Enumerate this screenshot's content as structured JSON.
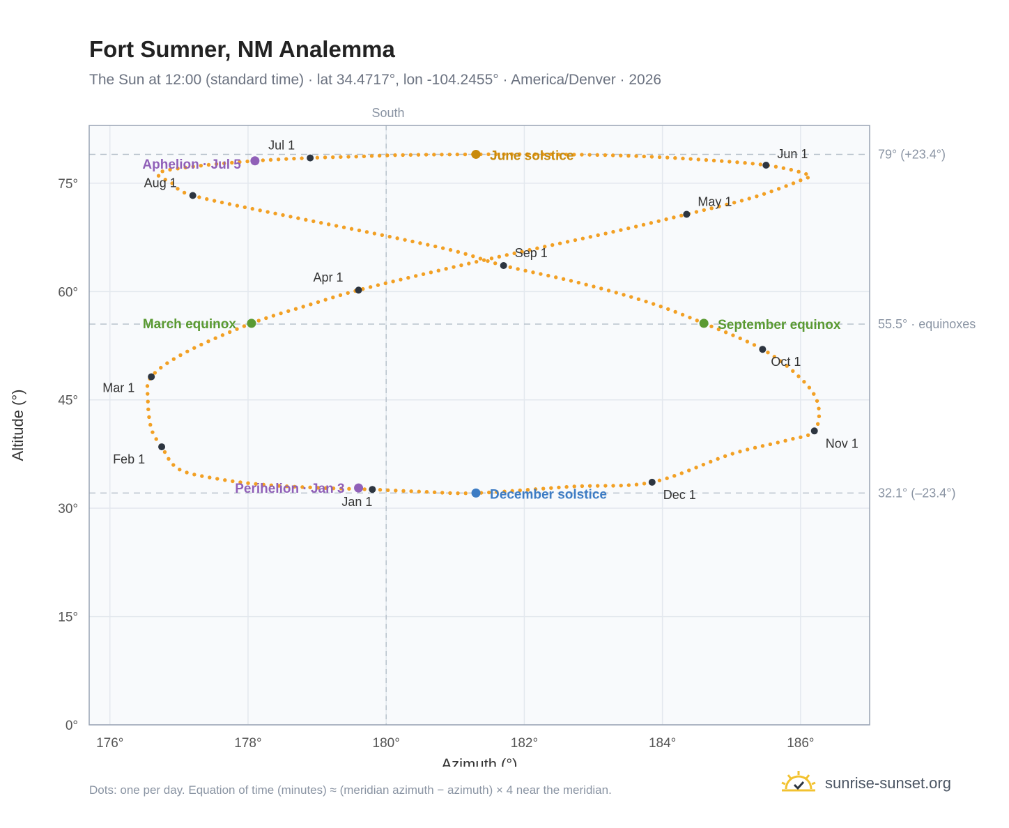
{
  "title": "Fort Sumner, NM Analemma",
  "subtitle": "The Sun at 12:00 (standard time) · lat 34.4717°, lon -104.2455° · America/Denver · 2026",
  "footnote": "Dots: one per day. Equation of time (minutes) ≈ (meridian azimuth − azimuth) × 4 near the meridian.",
  "brand": {
    "name": "sunrise-sunset.org",
    "icon": "sun-horizon-icon"
  },
  "colors": {
    "path": "#f2a024",
    "month_marker": "#2d3540",
    "equinox": "#5a9a32",
    "june_solstice": "#c88a0c",
    "december_solstice": "#3d7cc4",
    "apsis": "#9060b8",
    "plot_bg": "#f8fafc",
    "reference_line": "#b8c2cc"
  },
  "chart_data": {
    "type": "scatter",
    "xlabel": "Azimuth (°)",
    "ylabel": "Altitude (°)",
    "xlim": [
      175.7,
      187
    ],
    "ylim": [
      0,
      83
    ],
    "x_ticks": [
      {
        "value": 176,
        "label": "176°"
      },
      {
        "value": 178,
        "label": "178°"
      },
      {
        "value": 180,
        "label": "180°"
      },
      {
        "value": 182,
        "label": "182°"
      },
      {
        "value": 184,
        "label": "184°"
      },
      {
        "value": 186,
        "label": "186°"
      }
    ],
    "y_ticks": [
      {
        "value": 0,
        "label": "0°"
      },
      {
        "value": 15,
        "label": "15°"
      },
      {
        "value": 30,
        "label": "30°"
      },
      {
        "value": 45,
        "label": "45°"
      },
      {
        "value": 60,
        "label": "60°"
      },
      {
        "value": 75,
        "label": "75°"
      }
    ],
    "grid": true,
    "meridian": {
      "azimuth": 180,
      "label": "South"
    },
    "reference_lines": [
      {
        "altitude": 79,
        "label": "79° (+23.4°)"
      },
      {
        "altitude": 55.5,
        "label": "55.5° · equinoxes"
      },
      {
        "altitude": 32.1,
        "label": "32.1° (–23.4°)"
      }
    ],
    "path_points": [
      [
        179.8,
        32.6
      ],
      [
        179.1,
        32.8
      ],
      [
        178.3,
        33.2
      ],
      [
        177.6,
        34.0
      ],
      [
        177.0,
        35.4
      ],
      [
        176.75,
        38.5
      ],
      [
        176.6,
        41.0
      ],
      [
        176.55,
        45.0
      ],
      [
        176.6,
        48.2
      ],
      [
        177.1,
        51.6
      ],
      [
        178.05,
        55.6
      ],
      [
        178.9,
        58.2
      ],
      [
        179.6,
        60.2
      ],
      [
        180.8,
        63.0
      ],
      [
        182.0,
        65.6
      ],
      [
        183.3,
        68.3
      ],
      [
        184.35,
        70.7
      ],
      [
        185.3,
        73.0
      ],
      [
        186.0,
        75.4
      ],
      [
        186.1,
        76.2
      ],
      [
        185.5,
        77.5
      ],
      [
        184.5,
        78.3
      ],
      [
        183.5,
        78.8
      ],
      [
        182.4,
        79.0
      ],
      [
        181.3,
        79.0
      ],
      [
        180.2,
        78.9
      ],
      [
        179.6,
        78.7
      ],
      [
        178.9,
        78.5
      ],
      [
        178.1,
        78.1
      ],
      [
        177.2,
        77.3
      ],
      [
        176.7,
        76.4
      ],
      [
        176.9,
        75.0
      ],
      [
        177.2,
        73.3
      ],
      [
        178.5,
        70.6
      ],
      [
        179.9,
        67.9
      ],
      [
        181.0,
        65.6
      ],
      [
        181.7,
        63.6
      ],
      [
        182.8,
        61.2
      ],
      [
        183.8,
        58.5
      ],
      [
        184.6,
        55.6
      ],
      [
        185.45,
        52.0
      ],
      [
        186.0,
        48.0
      ],
      [
        186.25,
        44.5
      ],
      [
        186.2,
        40.7
      ],
      [
        185.8,
        39.4
      ],
      [
        185.0,
        37.5
      ],
      [
        183.85,
        33.6
      ],
      [
        182.7,
        33.0
      ],
      [
        181.3,
        32.1
      ],
      [
        180.5,
        32.3
      ],
      [
        179.8,
        32.6
      ]
    ],
    "month_markers": [
      {
        "label": "Jan 1",
        "az": 179.8,
        "alt": 32.6
      },
      {
        "label": "Feb 1",
        "az": 176.75,
        "alt": 38.5
      },
      {
        "label": "Mar 1",
        "az": 176.6,
        "alt": 48.2
      },
      {
        "label": "Apr 1",
        "az": 179.6,
        "alt": 60.2
      },
      {
        "label": "May 1",
        "az": 184.35,
        "alt": 70.7
      },
      {
        "label": "Jun 1",
        "az": 185.5,
        "alt": 77.5
      },
      {
        "label": "Jul 1",
        "az": 178.9,
        "alt": 78.5
      },
      {
        "label": "Aug 1",
        "az": 177.2,
        "alt": 73.3
      },
      {
        "label": "Sep 1",
        "az": 181.7,
        "alt": 63.6
      },
      {
        "label": "Oct 1",
        "az": 185.45,
        "alt": 52.0
      },
      {
        "label": "Nov 1",
        "az": 186.2,
        "alt": 40.7
      },
      {
        "label": "Dec 1",
        "az": 183.85,
        "alt": 33.6
      }
    ],
    "events": [
      {
        "label": "March equinox",
        "az": 178.05,
        "alt": 55.6,
        "color_key": "equinox"
      },
      {
        "label": "September equinox",
        "az": 184.6,
        "alt": 55.6,
        "color_key": "equinox"
      },
      {
        "label": "June solstice",
        "az": 181.3,
        "alt": 79.0,
        "color_key": "june_solstice"
      },
      {
        "label": "December solstice",
        "az": 181.3,
        "alt": 32.1,
        "color_key": "december_solstice"
      },
      {
        "label": "Aphelion · Jul 5",
        "az": 178.1,
        "alt": 78.1,
        "color_key": "apsis"
      },
      {
        "label": "Perihelion · Jan 3",
        "az": 179.6,
        "alt": 32.8,
        "color_key": "apsis"
      }
    ]
  }
}
